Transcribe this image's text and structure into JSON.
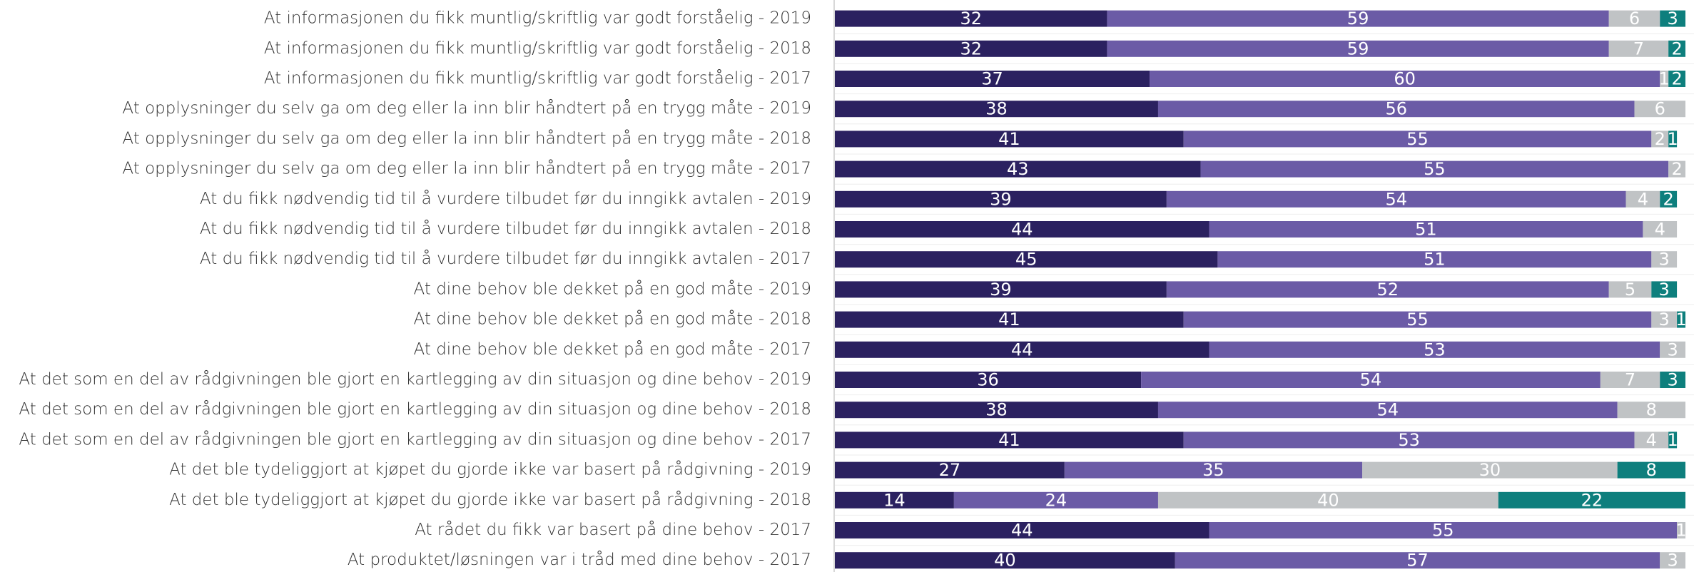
{
  "chart_data": {
    "type": "stacked-barh",
    "categories": [
      "At informasjonen du fikk muntlig/skriftlig var godt forståelig - 2019",
      "At informasjonen du fikk muntlig/skriftlig var godt forståelig - 2018",
      "At informasjonen du fikk muntlig/skriftlig var godt forståelig - 2017",
      "At opplysninger du selv ga om deg eller la inn blir håndtert på en trygg måte - 2019",
      "At opplysninger du selv ga om deg eller la inn blir håndtert på en trygg måte - 2018",
      "At opplysninger du selv ga om deg eller la inn blir håndtert på en trygg måte - 2017",
      "At du fikk nødvendig tid til å vurdere tilbudet før du inngikk avtalen - 2019",
      "At du fikk nødvendig tid til å vurdere tilbudet før du inngikk avtalen - 2018",
      "At du fikk nødvendig tid til å vurdere tilbudet før du inngikk avtalen - 2017",
      "At dine behov ble dekket på en god måte - 2019",
      "At dine behov ble dekket på en god måte - 2018",
      "At dine behov ble dekket på en god måte - 2017",
      "At det som en del av rådgivningen ble gjort en kartlegging av din situasjon og dine behov - 2019",
      "At det som en del av rådgivningen ble gjort en kartlegging av din situasjon og dine behov - 2018",
      "At det som en del av rådgivningen ble gjort en kartlegging av din situasjon og dine behov - 2017",
      "At det ble tydeliggjort at kjøpet du gjorde ikke var basert på rådgivning - 2019",
      "At det ble tydeliggjort at kjøpet du gjorde ikke var basert på rådgivning - 2018",
      "At rådet du fikk var basert på dine behov - 2017",
      "At produktet/løsningen var i tråd med dine behov - 2017"
    ],
    "series": [
      {
        "color": "#2b2160",
        "values": [
          32,
          32,
          37,
          38,
          41,
          43,
          39,
          44,
          45,
          39,
          41,
          44,
          36,
          38,
          41,
          27,
          14,
          44,
          40
        ]
      },
      {
        "color": "#6b5ba6",
        "values": [
          59,
          59,
          60,
          56,
          55,
          55,
          54,
          51,
          51,
          52,
          55,
          53,
          54,
          54,
          53,
          35,
          24,
          55,
          57
        ]
      },
      {
        "color": "#c0c3c5",
        "values": [
          6,
          7,
          1,
          6,
          2,
          2,
          4,
          4,
          3,
          5,
          3,
          3,
          7,
          8,
          4,
          30,
          40,
          1,
          3
        ]
      },
      {
        "color": "#0e7f7d",
        "values": [
          3,
          2,
          2,
          0,
          1,
          0,
          2,
          0,
          0,
          3,
          1,
          0,
          3,
          0,
          1,
          8,
          22,
          0,
          0
        ]
      }
    ],
    "xlim": [
      0,
      100
    ]
  }
}
